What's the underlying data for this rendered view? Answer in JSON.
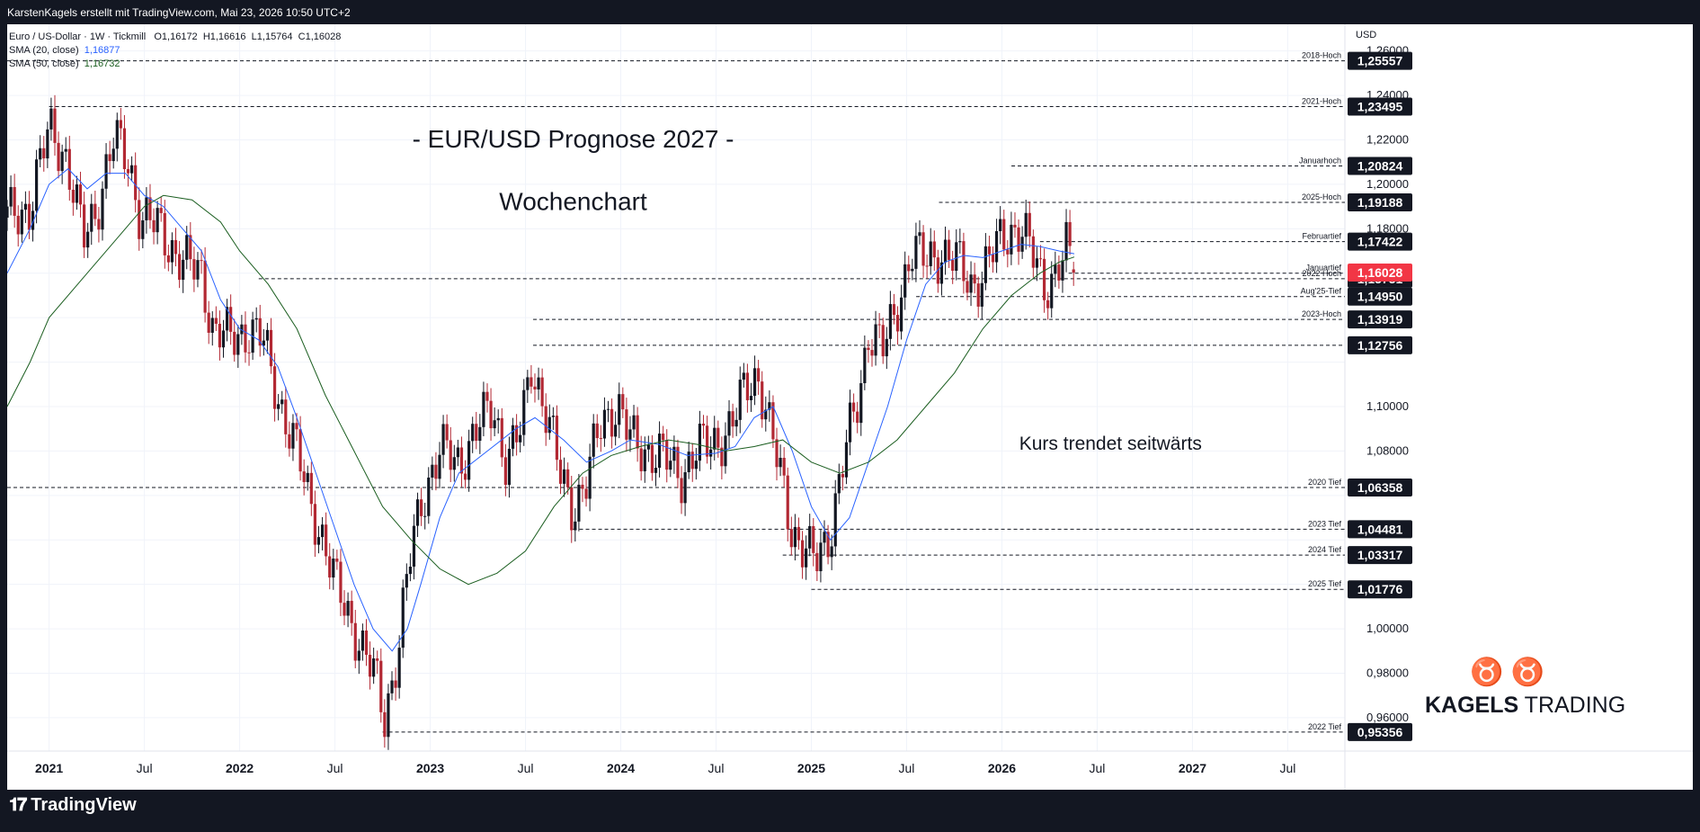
{
  "header": {
    "text": "KarstenKagels erstellt mit TradingView.com, Mai 23, 2026 10:50 UTC+2"
  },
  "legend": {
    "symbol": "Euro / US-Dollar · 1W · Tickmill",
    "o": "O1,16172",
    "h": "H1,16616",
    "l": "L1,15764",
    "c": "C1,16028",
    "ma20_label": "SMA (20, close)",
    "ma20_value": "1,16877",
    "ma50_label": "SMA (50, close)",
    "ma50_value": "1,16732"
  },
  "footer": {
    "brand": "TradingView"
  },
  "watermark": {
    "brand_bold": "KAGELS",
    "brand_rest": " TRADING"
  },
  "chart_data": {
    "type": "candlestick",
    "title": "- EUR/USD Prognose 2027 -",
    "subtitle": "Wochenchart",
    "annotation": "Kurs trendet seitwärts",
    "currency": "USD",
    "ylim": [
      0.945,
      1.272
    ],
    "xlim": [
      2020.78,
      2027.8
    ],
    "y_ticks": [
      "1,26000",
      "1,24000",
      "1,22000",
      "1,20000",
      "1,18000",
      "1,10000",
      "1,08000",
      "1,00000",
      "0,98000",
      "0,96000"
    ],
    "x_ticks": [
      {
        "label": "2021",
        "x": 2021.0,
        "bold": true
      },
      {
        "label": "Jul",
        "x": 2021.5,
        "bold": false
      },
      {
        "label": "2022",
        "x": 2022.0,
        "bold": true
      },
      {
        "label": "Jul",
        "x": 2022.5,
        "bold": false
      },
      {
        "label": "2023",
        "x": 2023.0,
        "bold": true
      },
      {
        "label": "Jul",
        "x": 2023.5,
        "bold": false
      },
      {
        "label": "2024",
        "x": 2024.0,
        "bold": true
      },
      {
        "label": "Jul",
        "x": 2024.5,
        "bold": false
      },
      {
        "label": "2025",
        "x": 2025.0,
        "bold": true
      },
      {
        "label": "Jul",
        "x": 2025.5,
        "bold": false
      },
      {
        "label": "2026",
        "x": 2026.0,
        "bold": true
      },
      {
        "label": "Jul",
        "x": 2026.5,
        "bold": false
      },
      {
        "label": "2027",
        "x": 2027.0,
        "bold": true
      },
      {
        "label": "Jul",
        "x": 2027.5,
        "bold": false
      }
    ],
    "levels": [
      {
        "label": "2018-Hoch",
        "value": 1.25557,
        "tag": "1,25557",
        "start": 2020.78
      },
      {
        "label": "2021-Hoch",
        "value": 1.23495,
        "tag": "1,23495",
        "start": 2021.0
      },
      {
        "label": "Januarhoch",
        "value": 1.20824,
        "tag": "1,20824",
        "start": 2026.05
      },
      {
        "label": "2025-Hoch",
        "value": 1.19188,
        "tag": "1,19188",
        "start": 2025.67
      },
      {
        "label": "Februartief",
        "value": 1.17422,
        "tag": "1,17422",
        "start": 2026.2
      },
      {
        "label": "Januartief",
        "value": 1.16,
        "tag": "",
        "start": 2026.35
      },
      {
        "label": "2022 Hoch",
        "value": 1.15751,
        "tag": "1,15751",
        "start": 2022.1
      },
      {
        "label": "Aug'25-Tief",
        "value": 1.1495,
        "tag": "1,14950",
        "start": 2025.55
      },
      {
        "label": "2023-Hoch",
        "value": 1.13919,
        "tag": "1,13919",
        "start": 2023.54
      },
      {
        "label": "",
        "value": 1.12756,
        "tag": "1,12756",
        "start": 2023.54
      },
      {
        "label": "2020 Tief",
        "value": 1.06358,
        "tag": "1,06358",
        "start": 2020.78
      },
      {
        "label": "2023 Tief",
        "value": 1.04481,
        "tag": "1,04481",
        "start": 2023.75
      },
      {
        "label": "2024 Tief",
        "value": 1.03317,
        "tag": "1,03317",
        "start": 2024.85
      },
      {
        "label": "2025 Tief",
        "value": 1.01776,
        "tag": "1,01776",
        "start": 2025.0
      },
      {
        "label": "2022 Tief",
        "value": 0.95356,
        "tag": "0,95356",
        "start": 2022.75
      }
    ],
    "last_price": {
      "value": 1.16028,
      "tag": "1,16028"
    },
    "anchors": [
      [
        2020.78,
        1.185
      ],
      [
        2020.9,
        1.19
      ],
      [
        2021.0,
        1.225
      ],
      [
        2021.08,
        1.215
      ],
      [
        2021.18,
        1.175
      ],
      [
        2021.25,
        1.19
      ],
      [
        2021.34,
        1.22
      ],
      [
        2021.42,
        1.21
      ],
      [
        2021.48,
        1.185
      ],
      [
        2021.58,
        1.18
      ],
      [
        2021.7,
        1.165
      ],
      [
        2021.8,
        1.16
      ],
      [
        2021.86,
        1.135
      ],
      [
        2021.95,
        1.13
      ],
      [
        2022.05,
        1.135
      ],
      [
        2022.12,
        1.13
      ],
      [
        2022.2,
        1.105
      ],
      [
        2022.28,
        1.085
      ],
      [
        2022.36,
        1.06
      ],
      [
        2022.44,
        1.04
      ],
      [
        2022.5,
        1.02
      ],
      [
        2022.58,
        1.005
      ],
      [
        2022.65,
        0.99
      ],
      [
        2022.72,
        0.975
      ],
      [
        2022.76,
        0.96
      ],
      [
        2022.83,
        0.99
      ],
      [
        2022.9,
        1.035
      ],
      [
        2022.96,
        1.06
      ],
      [
        2023.05,
        1.08
      ],
      [
        2023.15,
        1.075
      ],
      [
        2023.25,
        1.09
      ],
      [
        2023.33,
        1.1
      ],
      [
        2023.4,
        1.075
      ],
      [
        2023.48,
        1.09
      ],
      [
        2023.53,
        1.12
      ],
      [
        2023.6,
        1.1
      ],
      [
        2023.68,
        1.07
      ],
      [
        2023.75,
        1.055
      ],
      [
        2023.82,
        1.065
      ],
      [
        2023.9,
        1.095
      ],
      [
        2023.98,
        1.1
      ],
      [
        2024.05,
        1.085
      ],
      [
        2024.15,
        1.08
      ],
      [
        2024.25,
        1.075
      ],
      [
        2024.32,
        1.07
      ],
      [
        2024.4,
        1.08
      ],
      [
        2024.5,
        1.085
      ],
      [
        2024.58,
        1.09
      ],
      [
        2024.66,
        1.11
      ],
      [
        2024.72,
        1.115
      ],
      [
        2024.78,
        1.09
      ],
      [
        2024.85,
        1.065
      ],
      [
        2024.9,
        1.045
      ],
      [
        2024.96,
        1.035
      ],
      [
        2025.02,
        1.03
      ],
      [
        2025.1,
        1.045
      ],
      [
        2025.18,
        1.08
      ],
      [
        2025.25,
        1.105
      ],
      [
        2025.3,
        1.135
      ],
      [
        2025.38,
        1.125
      ],
      [
        2025.45,
        1.145
      ],
      [
        2025.52,
        1.17
      ],
      [
        2025.6,
        1.165
      ],
      [
        2025.68,
        1.17
      ],
      [
        2025.76,
        1.165
      ],
      [
        2025.84,
        1.155
      ],
      [
        2025.9,
        1.16
      ],
      [
        2025.96,
        1.17
      ],
      [
        2026.04,
        1.18
      ],
      [
        2026.1,
        1.18
      ],
      [
        2026.16,
        1.168
      ],
      [
        2026.22,
        1.155
      ],
      [
        2026.28,
        1.16
      ],
      [
        2026.34,
        1.17
      ],
      [
        2026.38,
        1.16
      ]
    ],
    "series": [
      {
        "name": "SMA (20, close)",
        "color": "#2962ff",
        "points": [
          [
            2020.78,
            1.16
          ],
          [
            2020.9,
            1.18
          ],
          [
            2021.0,
            1.2
          ],
          [
            2021.1,
            1.207
          ],
          [
            2021.2,
            1.198
          ],
          [
            2021.3,
            1.205
          ],
          [
            2021.4,
            1.205
          ],
          [
            2021.5,
            1.195
          ],
          [
            2021.6,
            1.19
          ],
          [
            2021.7,
            1.18
          ],
          [
            2021.8,
            1.17
          ],
          [
            2021.9,
            1.148
          ],
          [
            2022.0,
            1.135
          ],
          [
            2022.1,
            1.13
          ],
          [
            2022.2,
            1.118
          ],
          [
            2022.3,
            1.095
          ],
          [
            2022.4,
            1.07
          ],
          [
            2022.5,
            1.045
          ],
          [
            2022.6,
            1.02
          ],
          [
            2022.7,
            1.0
          ],
          [
            2022.8,
            0.99
          ],
          [
            2022.88,
            1.0
          ],
          [
            2022.95,
            1.02
          ],
          [
            2023.05,
            1.05
          ],
          [
            2023.15,
            1.07
          ],
          [
            2023.3,
            1.08
          ],
          [
            2023.45,
            1.09
          ],
          [
            2023.55,
            1.095
          ],
          [
            2023.7,
            1.085
          ],
          [
            2023.82,
            1.075
          ],
          [
            2023.95,
            1.08
          ],
          [
            2024.05,
            1.085
          ],
          [
            2024.2,
            1.083
          ],
          [
            2024.35,
            1.078
          ],
          [
            2024.5,
            1.079
          ],
          [
            2024.6,
            1.082
          ],
          [
            2024.7,
            1.095
          ],
          [
            2024.8,
            1.1
          ],
          [
            2024.9,
            1.08
          ],
          [
            2025.0,
            1.055
          ],
          [
            2025.1,
            1.04
          ],
          [
            2025.2,
            1.05
          ],
          [
            2025.3,
            1.075
          ],
          [
            2025.4,
            1.1
          ],
          [
            2025.5,
            1.13
          ],
          [
            2025.6,
            1.155
          ],
          [
            2025.7,
            1.165
          ],
          [
            2025.8,
            1.168
          ],
          [
            2025.9,
            1.167
          ],
          [
            2026.0,
            1.17
          ],
          [
            2026.1,
            1.173
          ],
          [
            2026.2,
            1.172
          ],
          [
            2026.3,
            1.17
          ],
          [
            2026.38,
            1.16877
          ]
        ]
      },
      {
        "name": "SMA (50, close)",
        "color": "#1b5e20",
        "points": [
          [
            2020.78,
            1.1
          ],
          [
            2020.9,
            1.12
          ],
          [
            2021.0,
            1.14
          ],
          [
            2021.2,
            1.16
          ],
          [
            2021.35,
            1.175
          ],
          [
            2021.5,
            1.19
          ],
          [
            2021.6,
            1.195
          ],
          [
            2021.75,
            1.193
          ],
          [
            2021.9,
            1.183
          ],
          [
            2022.0,
            1.17
          ],
          [
            2022.15,
            1.155
          ],
          [
            2022.3,
            1.135
          ],
          [
            2022.45,
            1.105
          ],
          [
            2022.6,
            1.08
          ],
          [
            2022.75,
            1.055
          ],
          [
            2022.9,
            1.04
          ],
          [
            2023.05,
            1.027
          ],
          [
            2023.2,
            1.02
          ],
          [
            2023.35,
            1.025
          ],
          [
            2023.5,
            1.035
          ],
          [
            2023.65,
            1.055
          ],
          [
            2023.8,
            1.07
          ],
          [
            2023.95,
            1.078
          ],
          [
            2024.1,
            1.082
          ],
          [
            2024.25,
            1.085
          ],
          [
            2024.4,
            1.083
          ],
          [
            2024.55,
            1.08
          ],
          [
            2024.7,
            1.082
          ],
          [
            2024.85,
            1.085
          ],
          [
            2025.0,
            1.075
          ],
          [
            2025.15,
            1.07
          ],
          [
            2025.3,
            1.075
          ],
          [
            2025.45,
            1.085
          ],
          [
            2025.6,
            1.1
          ],
          [
            2025.75,
            1.115
          ],
          [
            2025.9,
            1.135
          ],
          [
            2026.05,
            1.15
          ],
          [
            2026.2,
            1.16
          ],
          [
            2026.3,
            1.165
          ],
          [
            2026.38,
            1.16732
          ]
        ]
      }
    ]
  }
}
